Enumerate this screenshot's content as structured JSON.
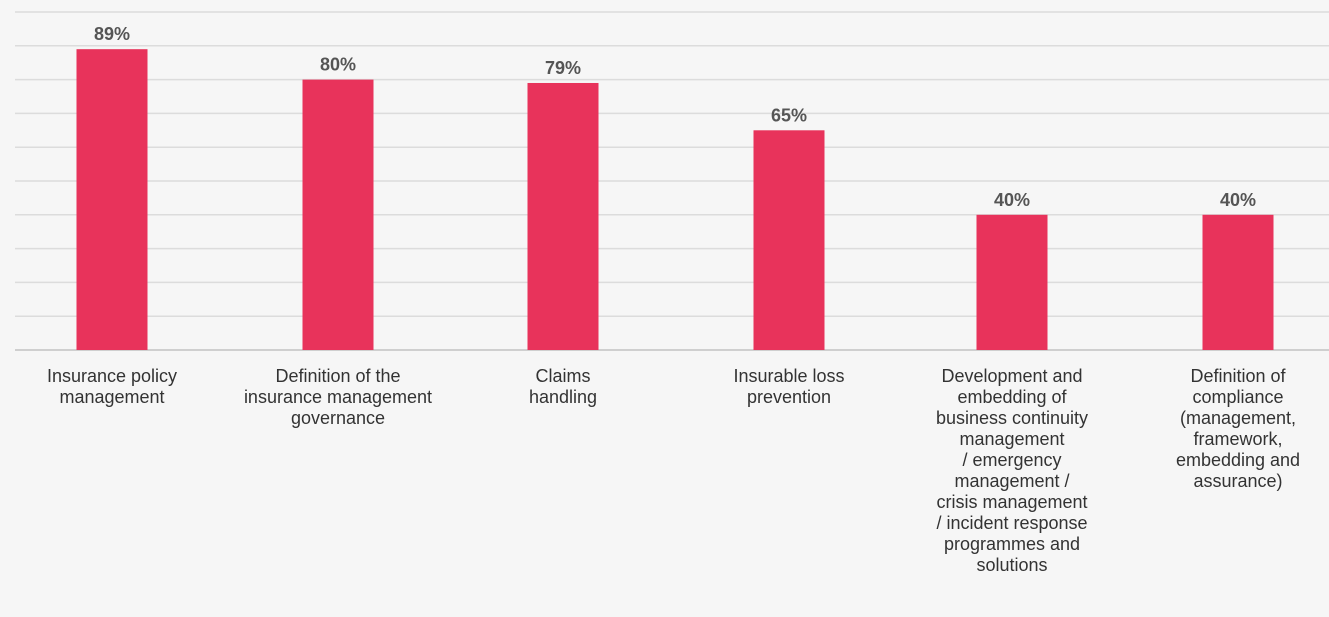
{
  "chart_data": {
    "type": "bar",
    "categories": [
      "Insurance policy\nmanagement",
      "Definition of the\ninsurance management\ngovernance",
      "Claims\nhandling",
      "Insurable loss\nprevention",
      "Development and\nembedding of\nbusiness continuity\nmanagement\n/ emergency\nmanagement /\ncrisis management\n/ incident response\nprogrammes and\nsolutions",
      "Definition of\ncompliance\n(management,\nframework,\nembedding and\nassurance)"
    ],
    "values": [
      89,
      80,
      79,
      65,
      40,
      40
    ],
    "value_labels": [
      "89%",
      "80%",
      "79%",
      "65%",
      "40%",
      "40%"
    ],
    "ylim": [
      0,
      100
    ],
    "grid": true,
    "colors": {
      "bar": "#e8335b",
      "value_label": "#555555",
      "gridline": "#dcdcdc",
      "baseline": "#cfcfcf",
      "background": "#f6f6f6"
    }
  }
}
